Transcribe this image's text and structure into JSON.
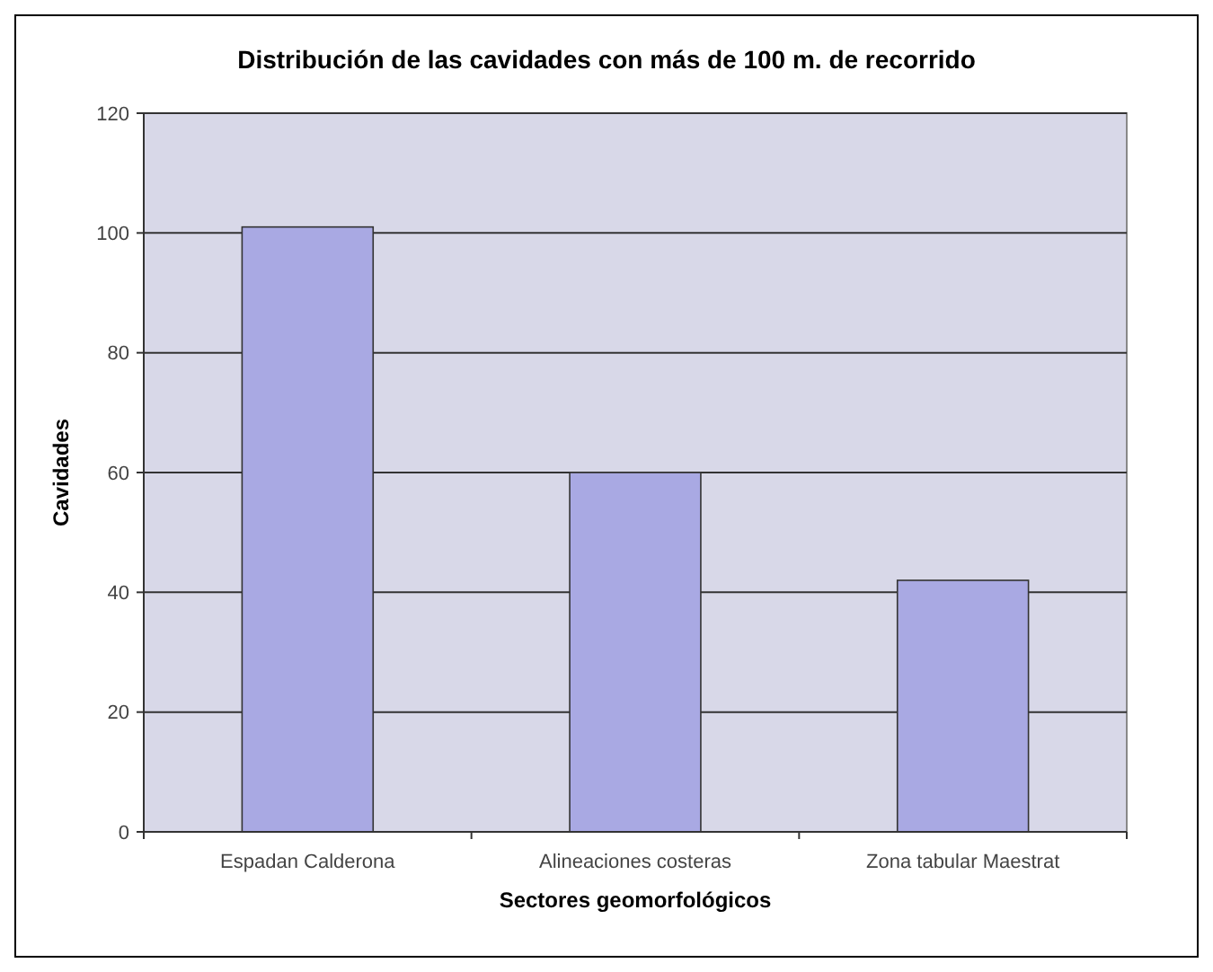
{
  "chart_data": {
    "type": "bar",
    "title": "Distribución de las cavidades con más de 100 m. de recorrido",
    "xlabel": "Sectores geomorfológicos",
    "ylabel": "Cavidades",
    "categories": [
      "Espadan Calderona",
      "Alineaciones costeras",
      "Zona tabular Maestrat"
    ],
    "values": [
      101,
      60,
      42
    ],
    "color": "#a9a9e3",
    "ylim": [
      0,
      120
    ],
    "yticks": [
      0,
      20,
      40,
      60,
      80,
      100,
      120
    ],
    "grid": "y"
  }
}
